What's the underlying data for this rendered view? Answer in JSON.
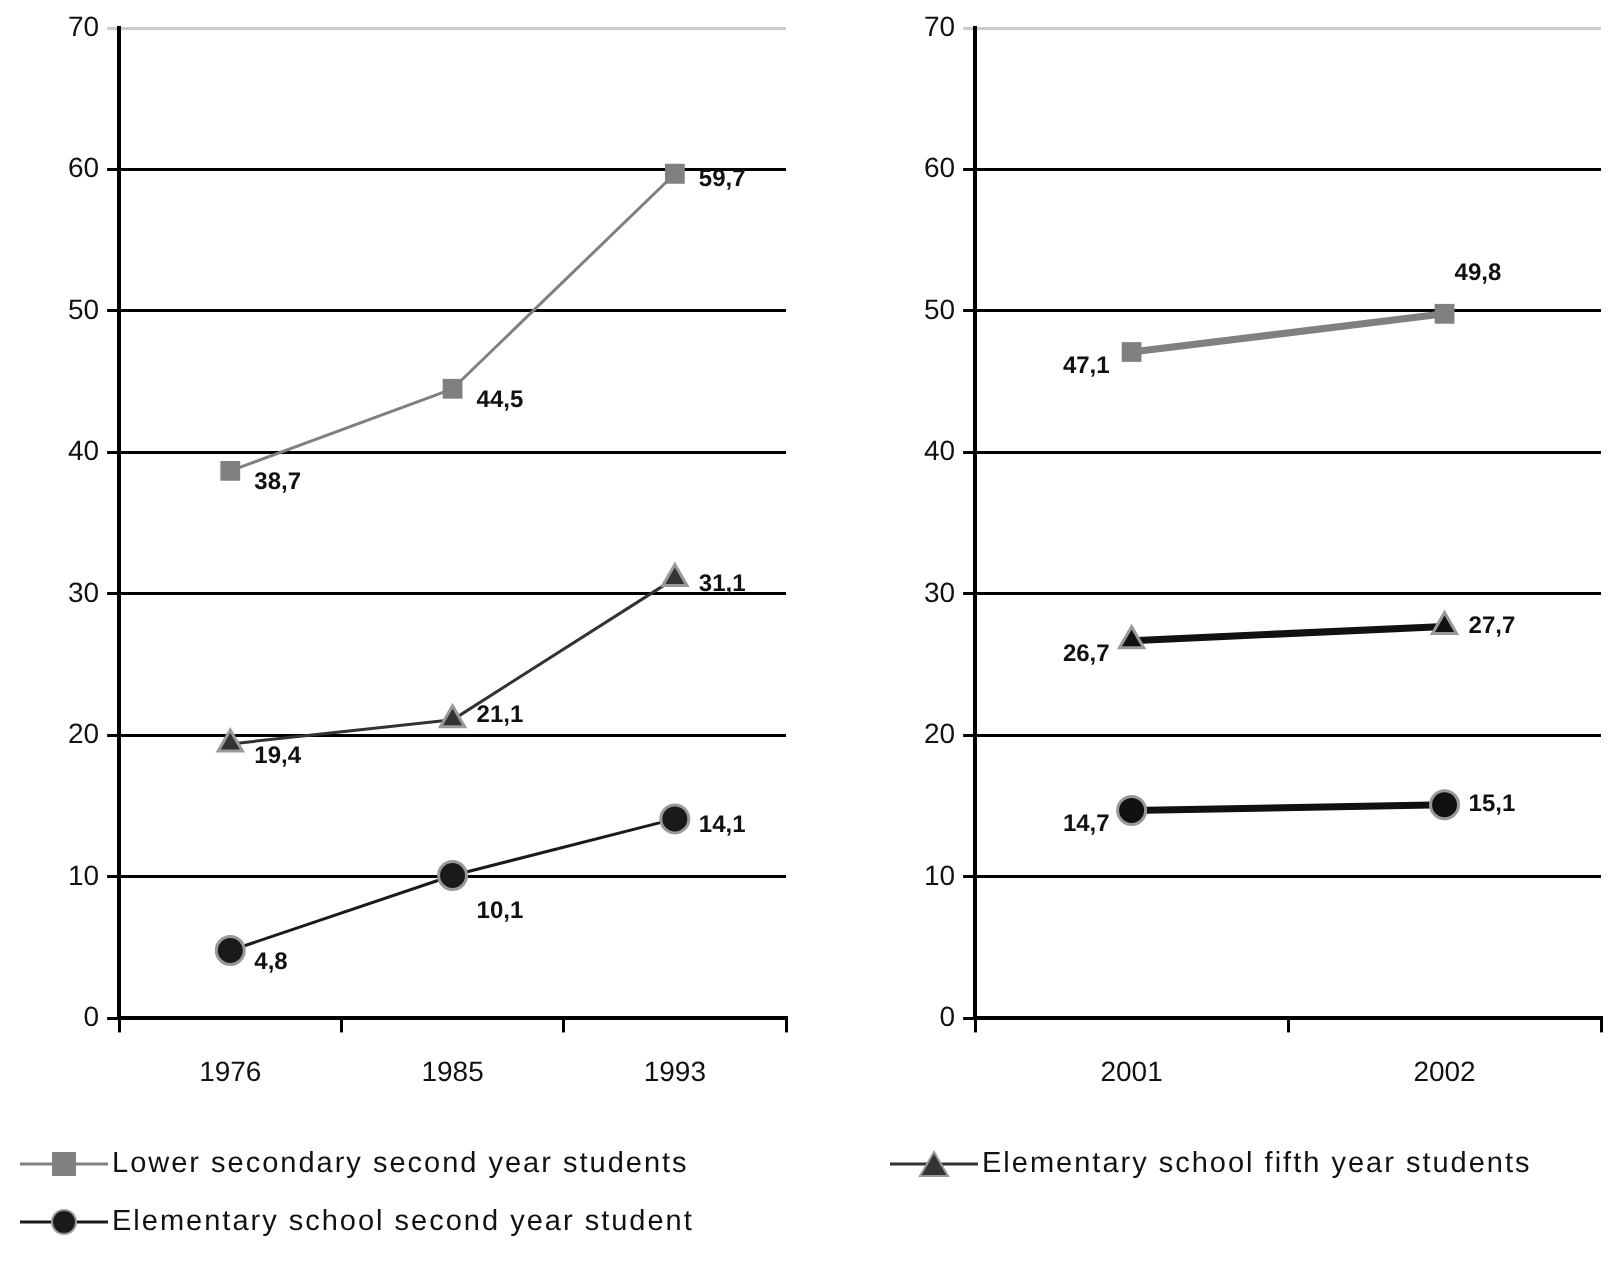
{
  "chart_data": [
    {
      "type": "line",
      "categories": [
        "1976",
        "1985",
        "1993"
      ],
      "ylim": [
        0,
        70
      ],
      "yticks": [
        0,
        10,
        20,
        30,
        40,
        50,
        60,
        70
      ],
      "grid": "y",
      "legend": "bottom",
      "series": [
        {
          "name": "Lower secondary second year students",
          "color": "#808080",
          "marker": "square",
          "values": [
            38.7,
            44.5,
            59.7
          ],
          "value_labels": [
            "38,7",
            "44,5",
            "59,7"
          ]
        },
        {
          "name": "Elementary school fifth year students",
          "color": "#333333",
          "marker": "triangle",
          "values": [
            19.4,
            21.1,
            31.1
          ],
          "value_labels": [
            "19,4",
            "21,1",
            "31,1"
          ]
        },
        {
          "name": "Elementary school second year student",
          "color": "#1a1a1a",
          "marker": "circle",
          "values": [
            4.8,
            10.1,
            14.1
          ],
          "value_labels": [
            "4,8",
            "10,1",
            "14,1"
          ]
        }
      ]
    },
    {
      "type": "line",
      "categories": [
        "2001",
        "2002"
      ],
      "ylim": [
        0,
        70
      ],
      "yticks": [
        0,
        10,
        20,
        30,
        40,
        50,
        60,
        70
      ],
      "grid": "y",
      "series": [
        {
          "color": "#808080",
          "marker": "square",
          "values": [
            47.1,
            49.8
          ],
          "value_labels": [
            "47,1",
            "49,8"
          ]
        },
        {
          "color": "#111111",
          "marker": "triangle",
          "values": [
            26.7,
            27.7
          ],
          "value_labels": [
            "26,7",
            "27,7"
          ]
        },
        {
          "color": "#111111",
          "marker": "circle",
          "values": [
            14.7,
            15.1
          ],
          "value_labels": [
            "14,7",
            "15,1"
          ]
        }
      ]
    }
  ]
}
